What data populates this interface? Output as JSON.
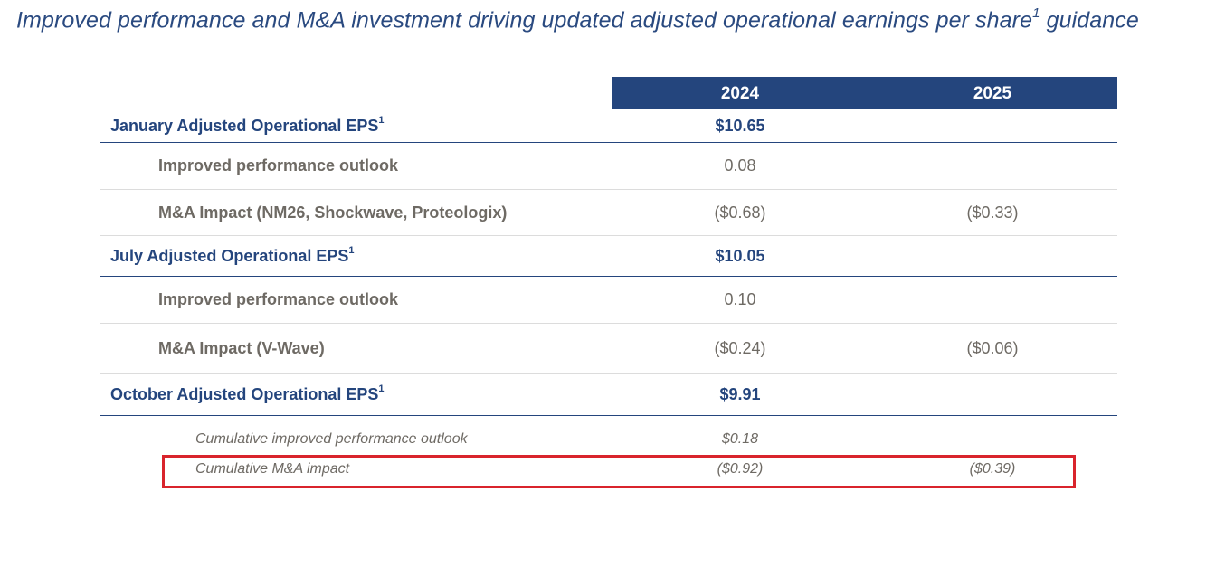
{
  "title": {
    "text": "Improved performance and M&A investment driving updated adjusted operational earnings per share",
    "sup": "1",
    "tail": " guidance"
  },
  "header": {
    "col1": "2024",
    "col2": "2025"
  },
  "rows": [
    {
      "label": "January Adjusted Operational EPS",
      "sup": "1",
      "v2024": "$10.65",
      "v2025": ""
    },
    {
      "label": "Improved performance outlook",
      "v2024": "0.08",
      "v2025": ""
    },
    {
      "label": "M&A Impact (NM26, Shockwave, Proteologix)",
      "v2024": "($0.68)",
      "v2025": "($0.33)"
    },
    {
      "label": "July Adjusted Operational EPS",
      "sup": "1",
      "v2024": "$10.05",
      "v2025": ""
    },
    {
      "label": "Improved performance outlook",
      "v2024": "0.10",
      "v2025": ""
    },
    {
      "label": "M&A Impact (V-Wave)",
      "v2024": "($0.24)",
      "v2025": "($0.06)"
    },
    {
      "label": "October Adjusted Operational EPS",
      "sup": "1",
      "v2024": "$9.91",
      "v2025": ""
    },
    {
      "label": "Cumulative improved performance outlook",
      "v2024": "$0.18",
      "v2025": ""
    },
    {
      "label": "Cumulative M&A impact",
      "v2024": "($0.92)",
      "v2025": "($0.39)"
    }
  ],
  "colors": {
    "brand_blue": "#24457d",
    "highlight_red": "#d9242c"
  }
}
